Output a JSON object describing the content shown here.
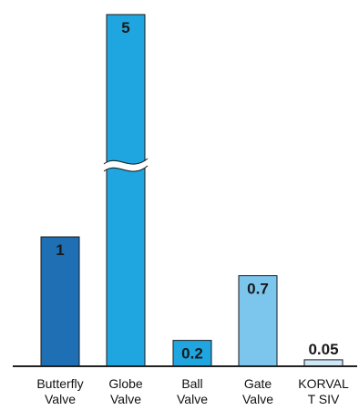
{
  "chart_data": {
    "type": "bar",
    "categories": [
      [
        "Butterfly",
        "Valve"
      ],
      [
        "Globe",
        "Valve"
      ],
      [
        "Ball",
        "Valve"
      ],
      [
        "Gate",
        "Valve"
      ],
      [
        "KORVAL",
        "T SIV"
      ]
    ],
    "values": [
      1,
      5,
      0.2,
      0.7,
      0.05
    ],
    "value_labels": [
      "1",
      "5",
      "0.2",
      "0.7",
      "0.05"
    ],
    "axis_break": {
      "category_index": 1,
      "style": "wavy"
    },
    "bar_colors": [
      "#1f6fb5",
      "#1fa6e0",
      "#1fa6e0",
      "#7cc6ee",
      "#cfe8f6"
    ],
    "label_colors": [
      "#1a1a1a",
      "#1a1a1a",
      "#1a1a1a",
      "#1a1a1a",
      "#1a1a1a"
    ],
    "grid": false,
    "legend": "none"
  }
}
